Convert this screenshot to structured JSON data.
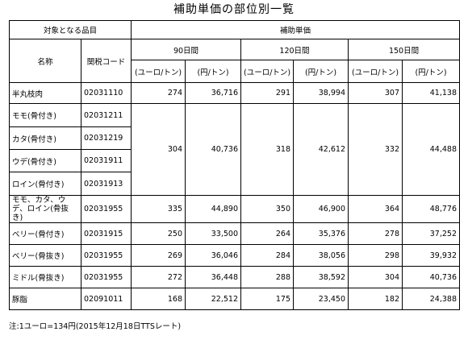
{
  "title": "補助単価の部位別一覧",
  "header": {
    "item_group": "対象となる品目",
    "subsidy_group": "補助単価",
    "name_label": "名称",
    "code_label": "関税コード",
    "periods": [
      "90日間",
      "120日間",
      "150日間"
    ],
    "unit_eur": "(ユーロ/トン)",
    "unit_jpy": "(円/トン)"
  },
  "rows": [
    {
      "name": "半丸枝肉",
      "code": "02031110",
      "v": [
        "274",
        "36,716",
        "291",
        "38,994",
        "307",
        "41,138"
      ]
    },
    {
      "name": "モモ(骨付き)",
      "code": "02031211"
    },
    {
      "name": "カタ(骨付き)",
      "code": "02031219"
    },
    {
      "name": "ウデ(骨付き)",
      "code": "02031911"
    },
    {
      "name": "ロイン(骨付き)",
      "code": "02031913"
    },
    {
      "name": "モモ、カタ、ウデ、ロイン(骨抜き)",
      "code": "02031955",
      "v": [
        "335",
        "44,890",
        "350",
        "46,900",
        "364",
        "48,776"
      ]
    },
    {
      "name": "ベリー(骨付き)",
      "code": "02031915",
      "v": [
        "250",
        "33,500",
        "264",
        "35,376",
        "278",
        "37,252"
      ]
    },
    {
      "name": "ベリー(骨抜き)",
      "code": "02031955",
      "v": [
        "269",
        "36,046",
        "284",
        "38,056",
        "298",
        "39,932"
      ]
    },
    {
      "name": "ミドル(骨抜き)",
      "code": "02031955",
      "v": [
        "272",
        "36,448",
        "288",
        "38,592",
        "304",
        "40,736"
      ]
    },
    {
      "name": "豚脂",
      "code": "02091011",
      "v": [
        "168",
        "22,512",
        "175",
        "23,450",
        "182",
        "24,388"
      ]
    }
  ],
  "bone_in_group_values": [
    "304",
    "40,736",
    "318",
    "42,612",
    "332",
    "44,488"
  ],
  "note": "注:1ユーロ=134円(2015年12月18日TTSレート)"
}
